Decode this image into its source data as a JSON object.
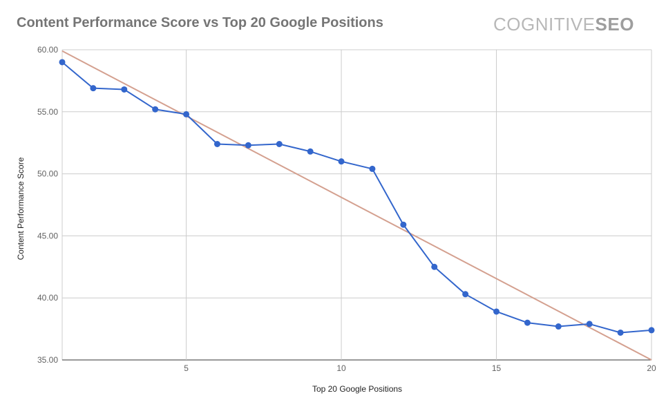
{
  "header": {
    "title": "Content Performance Score vs Top 20 Google Positions",
    "logo_light": "COGNITIVE",
    "logo_bold": "SEO"
  },
  "chart_data": {
    "type": "line",
    "title": "Content Performance Score vs Top 20 Google Positions",
    "xlabel": "Top 20 Google Positions",
    "ylabel": "Content Performance Score",
    "xlim": [
      1,
      20
    ],
    "ylim": [
      35,
      60
    ],
    "x_ticks": [
      5,
      10,
      15,
      20
    ],
    "y_ticks": [
      "35.00",
      "40.00",
      "45.00",
      "50.00",
      "55.00",
      "60.00"
    ],
    "grid": true,
    "series": [
      {
        "x": [
          1,
          2,
          3,
          4,
          5,
          6,
          7,
          8,
          9,
          10,
          11,
          12,
          13,
          14,
          15,
          16,
          17,
          18,
          19,
          20
        ],
        "values": [
          59.0,
          56.9,
          56.8,
          55.2,
          54.8,
          52.4,
          52.3,
          52.4,
          51.8,
          51.0,
          50.4,
          45.9,
          42.5,
          40.3,
          38.9,
          38.0,
          37.7,
          37.9,
          37.2,
          37.4
        ],
        "color": "#3366cc"
      }
    ],
    "trendline": {
      "x": [
        1,
        20
      ],
      "y": [
        59.9,
        35.0
      ],
      "color": "#d4a08f"
    }
  }
}
